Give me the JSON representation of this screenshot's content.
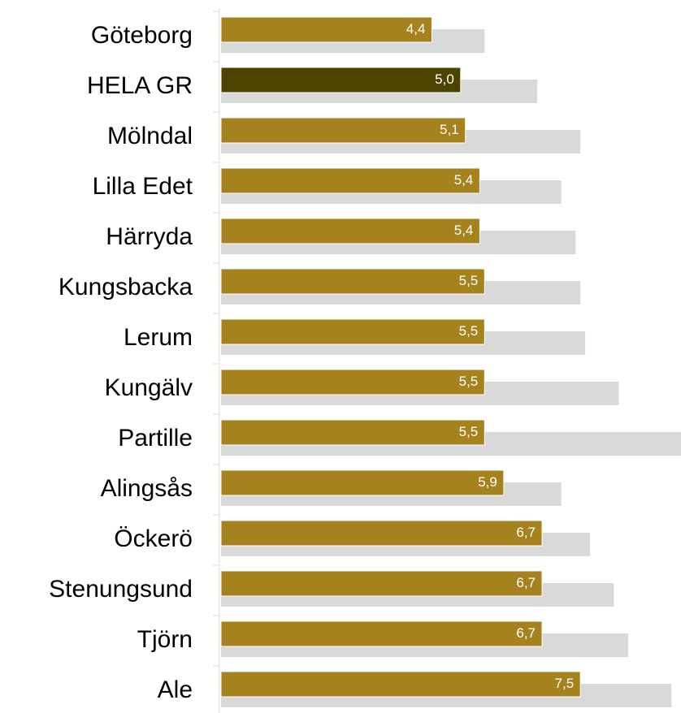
{
  "chart_data": {
    "type": "bar",
    "orientation": "horizontal",
    "categories": [
      "Göteborg",
      "HELA GR",
      "Mölndal",
      "Lilla Edet",
      "Härryda",
      "Kungsbacka",
      "Lerum",
      "Kungälv",
      "Partille",
      "Alingsås",
      "Öckerö",
      "Stenungsund",
      "Tjörn",
      "Ale"
    ],
    "series": [
      {
        "color": "#d9d9d9",
        "values": [
          5.5,
          6.6,
          7.5,
          7.1,
          7.4,
          7.5,
          7.6,
          8.3,
          9.6,
          7.1,
          7.7,
          8.2,
          8.5,
          9.4
        ]
      },
      {
        "color": "#a5821e",
        "colors": [
          "#a5821e",
          "#4d4200",
          "#a5821e",
          "#a5821e",
          "#a5821e",
          "#a5821e",
          "#a5821e",
          "#a5821e",
          "#a5821e",
          "#a5821e",
          "#a5821e",
          "#a5821e",
          "#a5821e",
          "#a5821e"
        ],
        "values": [
          4.4,
          5.0,
          5.1,
          5.4,
          5.4,
          5.5,
          5.5,
          5.5,
          5.5,
          5.9,
          6.7,
          6.7,
          6.7,
          7.5
        ],
        "value_labels": [
          "4,4",
          "5,0",
          "5,1",
          "5,4",
          "5,4",
          "5,5",
          "5,5",
          "5,5",
          "5,5",
          "5,9",
          "6,7",
          "6,7",
          "6,7",
          "7,5"
        ]
      }
    ],
    "xlim": [
      0,
      9.6
    ]
  }
}
